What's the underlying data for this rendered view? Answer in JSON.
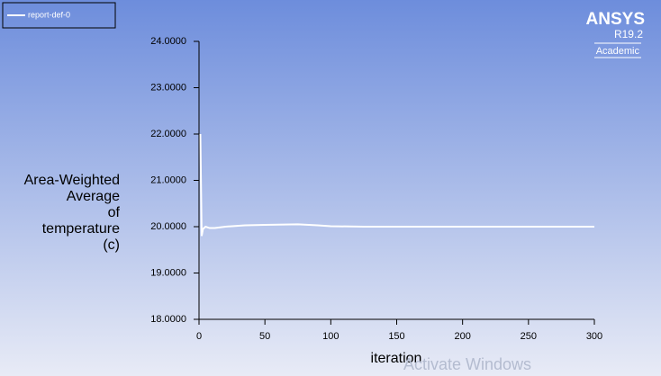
{
  "chart_data": {
    "type": "line",
    "ylabel": [
      "Area-Weighted",
      "Average",
      "of",
      "temperature",
      "(c)"
    ],
    "xlabel": "iteration",
    "series": [
      {
        "name": "report-def-0",
        "color": "#ffffff",
        "x": [
          1,
          2,
          3,
          5,
          8,
          12,
          20,
          35,
          50,
          75,
          90,
          100,
          125,
          150,
          200,
          250,
          300
        ],
        "values": [
          22.0,
          19.8,
          19.95,
          20.0,
          19.97,
          19.97,
          20.0,
          20.03,
          20.04,
          20.05,
          20.03,
          20.01,
          20.0,
          20.0,
          20.0,
          20.0,
          20.0
        ]
      }
    ],
    "xlim": [
      0,
      300
    ],
    "xticks": [
      0,
      50,
      100,
      150,
      200,
      250,
      300
    ],
    "ylim": [
      18,
      24
    ],
    "yticks": [
      {
        "value": 18,
        "label": "18.0000"
      },
      {
        "value": 19,
        "label": "19.0000"
      },
      {
        "value": 20,
        "label": "20.0000"
      },
      {
        "value": 21,
        "label": "21.0000"
      },
      {
        "value": 22,
        "label": "22.0000"
      },
      {
        "value": 23,
        "label": "23.0000"
      },
      {
        "value": 24,
        "label": "24.0000"
      }
    ],
    "legend": "top-left"
  },
  "logo": {
    "brand": "ANSYS",
    "version": "R19.2",
    "edition": "Academic"
  },
  "overlay": {
    "watermark": "Activate Windows"
  }
}
